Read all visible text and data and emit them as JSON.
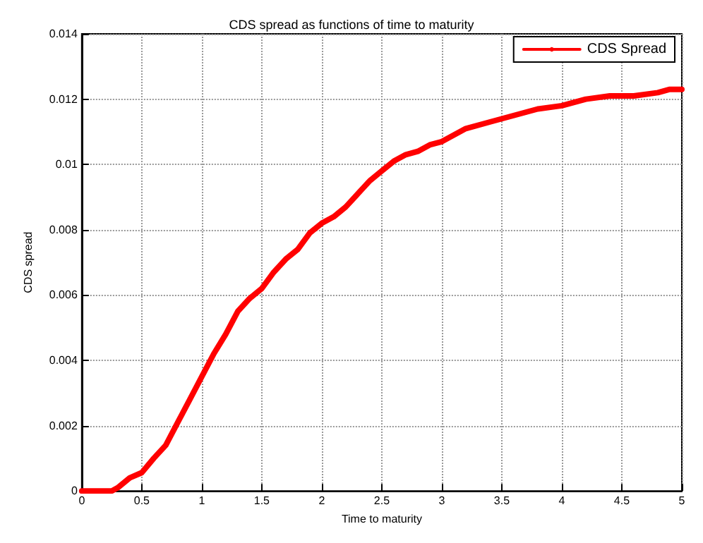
{
  "chart_data": {
    "type": "line",
    "title": "CDS spread as functions of time to maturity",
    "xlabel": "Time to maturity",
    "ylabel": "CDS spread",
    "x": [
      0,
      0.1,
      0.2,
      0.25,
      0.3,
      0.4,
      0.5,
      0.6,
      0.7,
      0.8,
      0.9,
      1.0,
      1.1,
      1.2,
      1.3,
      1.4,
      1.5,
      1.6,
      1.7,
      1.8,
      1.9,
      2.0,
      2.1,
      2.2,
      2.4,
      2.5,
      2.6,
      2.7,
      2.8,
      2.9,
      3.0,
      3.2,
      3.4,
      3.6,
      3.8,
      4.0,
      4.2,
      4.4,
      4.6,
      4.8,
      4.9,
      5.0
    ],
    "series": [
      {
        "name": "CDS Spread",
        "color": "#ff0000",
        "values": [
          0,
          0,
          0,
          0,
          0.0001,
          0.0004,
          0.00056,
          0.001,
          0.0014,
          0.0021,
          0.0028,
          0.0035,
          0.0042,
          0.0048,
          0.0055,
          0.0059,
          0.0062,
          0.0067,
          0.0071,
          0.0074,
          0.0079,
          0.0082,
          0.0084,
          0.0087,
          0.0095,
          0.0098,
          0.0101,
          0.0103,
          0.0104,
          0.0106,
          0.0107,
          0.0111,
          0.0113,
          0.0115,
          0.0117,
          0.0118,
          0.012,
          0.0121,
          0.0121,
          0.0122,
          0.0123,
          0.0123
        ]
      }
    ],
    "xlim": [
      0,
      5
    ],
    "xticks": [
      0,
      0.5,
      1,
      1.5,
      2,
      2.5,
      3,
      3.5,
      4,
      4.5,
      5
    ],
    "ylim": [
      0,
      0.014
    ],
    "yticks": [
      0,
      0.002,
      0.004,
      0.006,
      0.008,
      0.01,
      0.012,
      0.014
    ],
    "grid": true,
    "legend": "top right",
    "line_style": "solid",
    "marker": "none"
  }
}
